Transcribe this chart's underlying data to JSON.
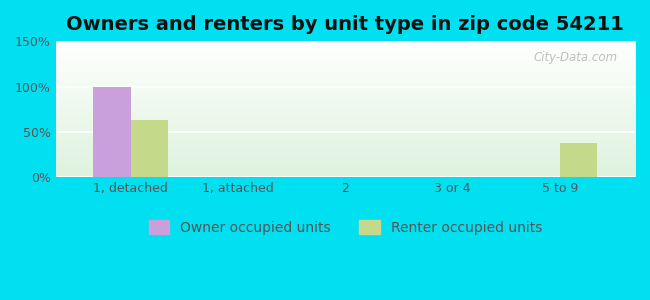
{
  "title": "Owners and renters by unit type in zip code 54211",
  "categories": [
    "1, detached",
    "1, attached",
    "2",
    "3 or 4",
    "5 to 9"
  ],
  "owner_values": [
    100,
    0,
    0,
    0,
    0
  ],
  "renter_values": [
    63,
    0,
    0,
    0,
    38
  ],
  "owner_color": "#c9a0dc",
  "renter_color": "#c5d98a",
  "ylim": [
    0,
    150
  ],
  "yticks": [
    0,
    50,
    100,
    150
  ],
  "ytick_labels": [
    "0%",
    "50%",
    "100%",
    "150%"
  ],
  "owner_label": "Owner occupied units",
  "renter_label": "Renter occupied units",
  "bar_width": 0.35,
  "background_outer": "#00e0f0",
  "title_fontsize": 14,
  "tick_fontsize": 9,
  "legend_fontsize": 10,
  "watermark": "City-Data.com"
}
